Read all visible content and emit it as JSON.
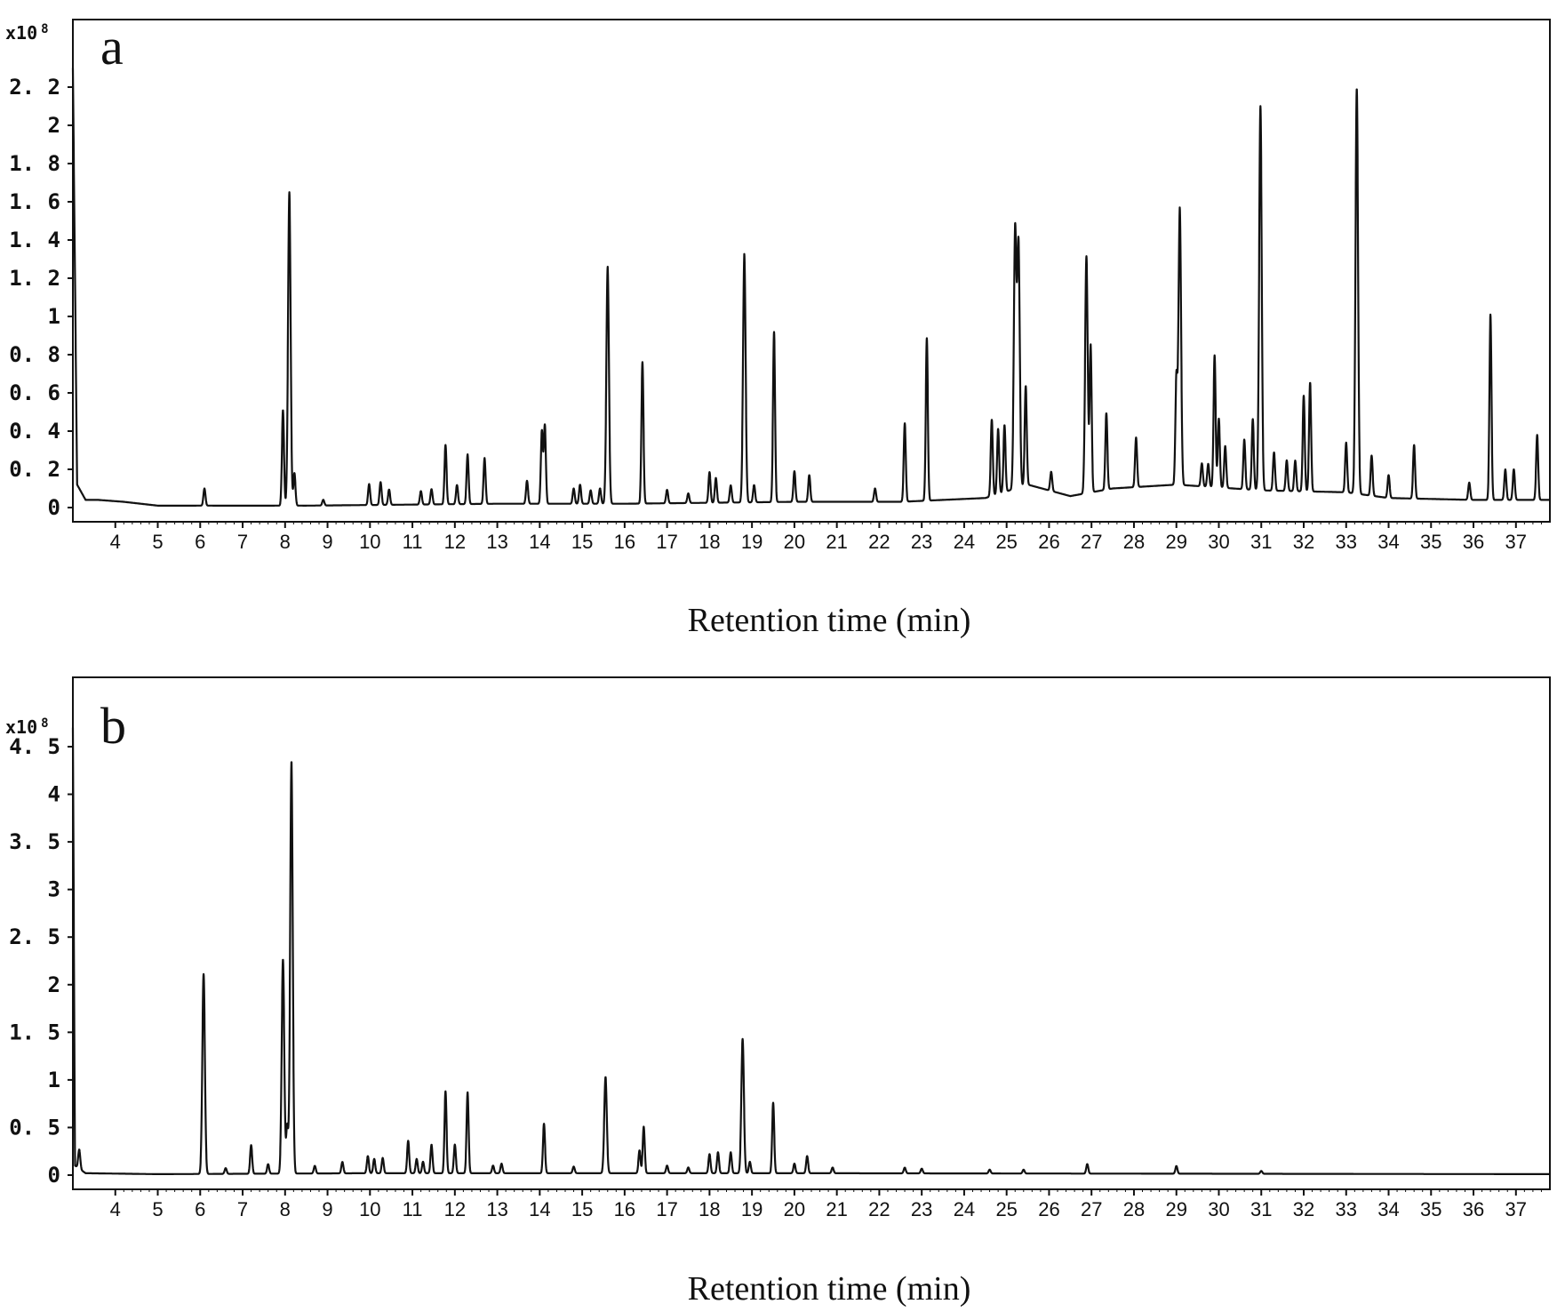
{
  "chart_data": [
    {
      "type": "line",
      "panel_label": "a",
      "y_unit": "x10",
      "y_unit_exponent": "8",
      "xlabel": "Retention time (min)",
      "ylabel": "",
      "xlim": [
        3.0,
        37.8
      ],
      "ylim": [
        0,
        2.35
      ],
      "x_ticks": [
        4,
        5,
        6,
        7,
        8,
        9,
        10,
        11,
        12,
        13,
        14,
        15,
        16,
        17,
        18,
        19,
        20,
        21,
        22,
        23,
        24,
        25,
        26,
        27,
        28,
        29,
        30,
        31,
        32,
        33,
        34,
        35,
        36,
        37
      ],
      "y_ticks": [
        {
          "value": 0,
          "label": "0"
        },
        {
          "value": 0.2,
          "label": "0. 2"
        },
        {
          "value": 0.4,
          "label": "0. 4"
        },
        {
          "value": 0.6,
          "label": "0. 6"
        },
        {
          "value": 0.8,
          "label": "0. 8"
        },
        {
          "value": 1.0,
          "label": "1"
        },
        {
          "value": 1.2,
          "label": "1. 2"
        },
        {
          "value": 1.4,
          "label": "1. 4"
        },
        {
          "value": 1.6,
          "label": "1. 6"
        },
        {
          "value": 1.8,
          "label": "1. 8"
        },
        {
          "value": 2.0,
          "label": "2"
        },
        {
          "value": 2.2,
          "label": "2. 2"
        }
      ],
      "baseline": [
        [
          3.0,
          2.3
        ],
        [
          3.1,
          0.12
        ],
        [
          3.3,
          0.04
        ],
        [
          3.6,
          0.04
        ],
        [
          4.2,
          0.03
        ],
        [
          5.0,
          0.01
        ],
        [
          8.5,
          0.01
        ],
        [
          13.0,
          0.02
        ],
        [
          16.0,
          0.02
        ],
        [
          20.0,
          0.03
        ],
        [
          22.5,
          0.03
        ],
        [
          24.5,
          0.05
        ],
        [
          25.5,
          0.12
        ],
        [
          26.5,
          0.06
        ],
        [
          27.5,
          0.1
        ],
        [
          29.0,
          0.12
        ],
        [
          31.0,
          0.09
        ],
        [
          33.0,
          0.08
        ],
        [
          34.0,
          0.05
        ],
        [
          36.0,
          0.04
        ],
        [
          37.8,
          0.04
        ]
      ],
      "peaks": [
        {
          "x": 6.1,
          "y": 0.09
        },
        {
          "x": 7.95,
          "y": 0.5
        },
        {
          "x": 8.1,
          "y": 1.64
        },
        {
          "x": 8.22,
          "y": 0.17
        },
        {
          "x": 8.9,
          "y": 0.03
        },
        {
          "x": 9.98,
          "y": 0.11
        },
        {
          "x": 10.25,
          "y": 0.12
        },
        {
          "x": 10.45,
          "y": 0.08
        },
        {
          "x": 11.2,
          "y": 0.07
        },
        {
          "x": 11.45,
          "y": 0.08
        },
        {
          "x": 11.78,
          "y": 0.31
        },
        {
          "x": 12.05,
          "y": 0.1
        },
        {
          "x": 12.3,
          "y": 0.26
        },
        {
          "x": 12.7,
          "y": 0.24
        },
        {
          "x": 13.7,
          "y": 0.12
        },
        {
          "x": 14.05,
          "y": 0.38
        },
        {
          "x": 14.12,
          "y": 0.41
        },
        {
          "x": 14.8,
          "y": 0.08
        },
        {
          "x": 14.95,
          "y": 0.1
        },
        {
          "x": 15.2,
          "y": 0.07
        },
        {
          "x": 15.42,
          "y": 0.08
        },
        {
          "x": 15.6,
          "y": 1.24
        },
        {
          "x": 16.42,
          "y": 0.74
        },
        {
          "x": 17.0,
          "y": 0.07
        },
        {
          "x": 17.5,
          "y": 0.05
        },
        {
          "x": 18.0,
          "y": 0.16
        },
        {
          "x": 18.15,
          "y": 0.13
        },
        {
          "x": 18.5,
          "y": 0.09
        },
        {
          "x": 18.82,
          "y": 1.3
        },
        {
          "x": 19.05,
          "y": 0.09
        },
        {
          "x": 19.52,
          "y": 0.89
        },
        {
          "x": 20.0,
          "y": 0.16
        },
        {
          "x": 20.35,
          "y": 0.14
        },
        {
          "x": 21.9,
          "y": 0.07
        },
        {
          "x": 22.6,
          "y": 0.41
        },
        {
          "x": 23.12,
          "y": 0.85
        },
        {
          "x": 24.65,
          "y": 0.4
        },
        {
          "x": 24.8,
          "y": 0.34
        },
        {
          "x": 24.95,
          "y": 0.35
        },
        {
          "x": 25.2,
          "y": 1.35
        },
        {
          "x": 25.28,
          "y": 1.27
        },
        {
          "x": 25.45,
          "y": 0.52
        },
        {
          "x": 26.05,
          "y": 0.1
        },
        {
          "x": 26.88,
          "y": 1.24
        },
        {
          "x": 26.98,
          "y": 0.77
        },
        {
          "x": 27.35,
          "y": 0.4
        },
        {
          "x": 28.05,
          "y": 0.26
        },
        {
          "x": 29.0,
          "y": 0.55
        },
        {
          "x": 29.08,
          "y": 1.45
        },
        {
          "x": 29.6,
          "y": 0.12
        },
        {
          "x": 29.75,
          "y": 0.12
        },
        {
          "x": 29.9,
          "y": 0.69
        },
        {
          "x": 30.0,
          "y": 0.36
        },
        {
          "x": 30.15,
          "y": 0.22
        },
        {
          "x": 30.6,
          "y": 0.26
        },
        {
          "x": 30.8,
          "y": 0.37
        },
        {
          "x": 30.98,
          "y": 2.01
        },
        {
          "x": 31.3,
          "y": 0.2
        },
        {
          "x": 31.6,
          "y": 0.16
        },
        {
          "x": 31.8,
          "y": 0.16
        },
        {
          "x": 32.0,
          "y": 0.5
        },
        {
          "x": 32.15,
          "y": 0.57
        },
        {
          "x": 33.0,
          "y": 0.26
        },
        {
          "x": 33.25,
          "y": 2.12
        },
        {
          "x": 33.6,
          "y": 0.21
        },
        {
          "x": 34.0,
          "y": 0.12
        },
        {
          "x": 34.6,
          "y": 0.28
        },
        {
          "x": 35.9,
          "y": 0.09
        },
        {
          "x": 36.4,
          "y": 0.97
        },
        {
          "x": 36.75,
          "y": 0.16
        },
        {
          "x": 36.95,
          "y": 0.16
        },
        {
          "x": 37.5,
          "y": 0.34
        }
      ]
    },
    {
      "type": "line",
      "panel_label": "b",
      "y_unit": "x10",
      "y_unit_exponent": "8",
      "xlabel": "Retention time (min)",
      "ylabel": "",
      "xlim": [
        3.0,
        37.8
      ],
      "ylim": [
        0,
        4.75
      ],
      "x_ticks": [
        4,
        5,
        6,
        7,
        8,
        9,
        10,
        11,
        12,
        13,
        14,
        15,
        16,
        17,
        18,
        19,
        20,
        21,
        22,
        23,
        24,
        25,
        26,
        27,
        28,
        29,
        30,
        31,
        32,
        33,
        34,
        35,
        36,
        37
      ],
      "y_ticks": [
        {
          "value": 0,
          "label": "0"
        },
        {
          "value": 0.5,
          "label": "0. 5"
        },
        {
          "value": 1.0,
          "label": "1"
        },
        {
          "value": 1.5,
          "label": "1. 5"
        },
        {
          "value": 2.0,
          "label": "2"
        },
        {
          "value": 2.5,
          "label": "2. 5"
        },
        {
          "value": 3.0,
          "label": "3"
        },
        {
          "value": 3.5,
          "label": "3. 5"
        },
        {
          "value": 4.0,
          "label": "4"
        },
        {
          "value": 4.5,
          "label": "4. 5"
        }
      ],
      "baseline": [
        [
          3.0,
          4.7
        ],
        [
          3.05,
          0.1
        ],
        [
          3.3,
          0.02
        ],
        [
          5.0,
          0.01
        ],
        [
          10.0,
          0.02
        ],
        [
          20.0,
          0.02
        ],
        [
          37.8,
          0.01
        ]
      ],
      "peaks": [
        {
          "x": 3.15,
          "y": 0.2
        },
        {
          "x": 6.08,
          "y": 2.1
        },
        {
          "x": 6.6,
          "y": 0.06
        },
        {
          "x": 7.2,
          "y": 0.3
        },
        {
          "x": 7.6,
          "y": 0.1
        },
        {
          "x": 7.95,
          "y": 2.25
        },
        {
          "x": 8.05,
          "y": 0.5
        },
        {
          "x": 8.15,
          "y": 4.33
        },
        {
          "x": 8.7,
          "y": 0.08
        },
        {
          "x": 9.35,
          "y": 0.12
        },
        {
          "x": 9.95,
          "y": 0.18
        },
        {
          "x": 10.1,
          "y": 0.15
        },
        {
          "x": 10.3,
          "y": 0.16
        },
        {
          "x": 10.9,
          "y": 0.34
        },
        {
          "x": 11.1,
          "y": 0.15
        },
        {
          "x": 11.25,
          "y": 0.12
        },
        {
          "x": 11.45,
          "y": 0.3
        },
        {
          "x": 11.78,
          "y": 0.86
        },
        {
          "x": 12.0,
          "y": 0.3
        },
        {
          "x": 12.3,
          "y": 0.85
        },
        {
          "x": 12.9,
          "y": 0.08
        },
        {
          "x": 13.1,
          "y": 0.1
        },
        {
          "x": 14.1,
          "y": 0.52
        },
        {
          "x": 14.8,
          "y": 0.07
        },
        {
          "x": 15.55,
          "y": 1.01
        },
        {
          "x": 16.35,
          "y": 0.24
        },
        {
          "x": 16.45,
          "y": 0.49
        },
        {
          "x": 17.0,
          "y": 0.08
        },
        {
          "x": 17.5,
          "y": 0.06
        },
        {
          "x": 18.0,
          "y": 0.2
        },
        {
          "x": 18.2,
          "y": 0.22
        },
        {
          "x": 18.5,
          "y": 0.22
        },
        {
          "x": 18.78,
          "y": 1.41
        },
        {
          "x": 18.95,
          "y": 0.12
        },
        {
          "x": 19.5,
          "y": 0.74
        },
        {
          "x": 20.0,
          "y": 0.1
        },
        {
          "x": 20.3,
          "y": 0.18
        },
        {
          "x": 20.9,
          "y": 0.06
        },
        {
          "x": 22.6,
          "y": 0.06
        },
        {
          "x": 23.0,
          "y": 0.05
        },
        {
          "x": 24.6,
          "y": 0.04
        },
        {
          "x": 25.4,
          "y": 0.04
        },
        {
          "x": 26.9,
          "y": 0.1
        },
        {
          "x": 29.0,
          "y": 0.08
        },
        {
          "x": 31.0,
          "y": 0.03
        }
      ]
    }
  ]
}
